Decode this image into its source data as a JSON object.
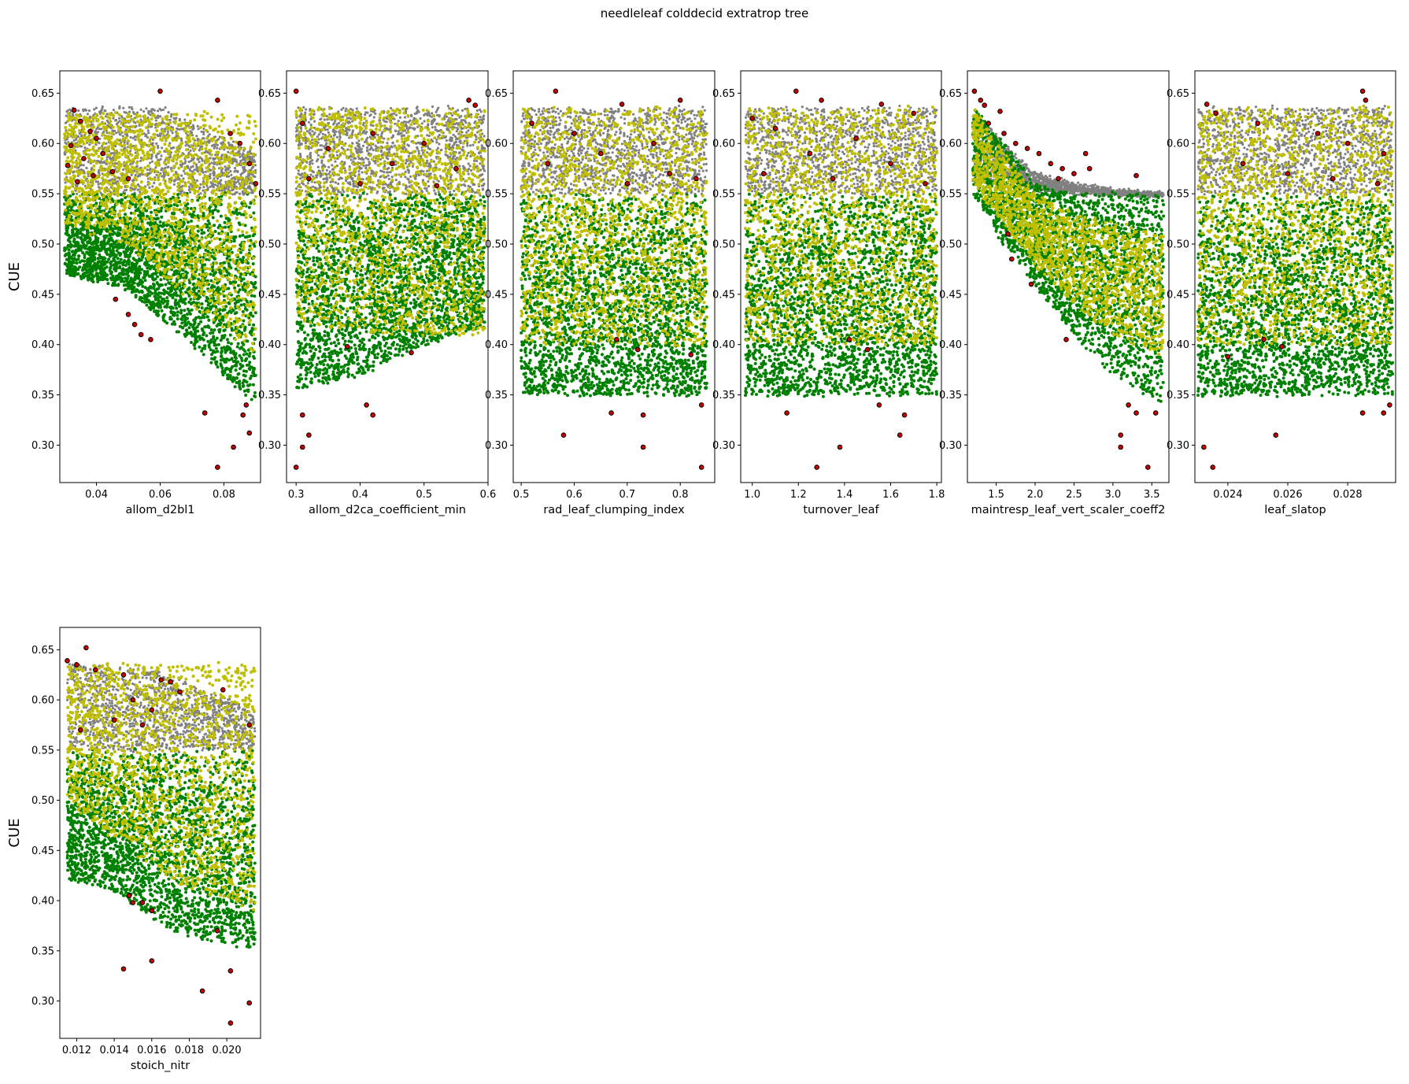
{
  "figure": {
    "title": "needleleaf colddecid extratrop tree",
    "colors": {
      "gray": "#808080",
      "green": "#008000",
      "yellow": "#bfbf00",
      "red": "#cc0000",
      "edge": "#000000"
    }
  },
  "chart_data": [
    {
      "type": "scatter",
      "xlabel": "allom_d2bl1",
      "ylabel": "CUE",
      "xlim": [
        0.0285,
        0.0915
      ],
      "ylim": [
        0.2628,
        0.6722
      ],
      "xticks": [
        "0.04",
        "0.06",
        "0.08"
      ],
      "yticks": [
        "0.30",
        "0.35",
        "0.40",
        "0.45",
        "0.50",
        "0.55",
        "0.60",
        "0.65"
      ],
      "x_domain": [
        0.03,
        0.09
      ],
      "series": [
        {
          "color": "gray",
          "y_range": [
            0.55,
            0.635
          ],
          "upper_edge": [
            [
              0.03,
              0.635
            ],
            [
              0.06,
              0.636
            ],
            [
              0.09,
              0.59
            ]
          ]
        },
        {
          "color": "green",
          "y_range": [
            0.35,
            0.55
          ],
          "lower_edge": [
            [
              0.03,
              0.47
            ],
            [
              0.05,
              0.455
            ],
            [
              0.07,
              0.4
            ],
            [
              0.09,
              0.34
            ]
          ]
        },
        {
          "color": "yellow",
          "y_range": [
            0.38,
            0.63
          ],
          "lower_edge": [
            [
              0.03,
              0.52
            ],
            [
              0.05,
              0.5
            ],
            [
              0.07,
              0.44
            ],
            [
              0.09,
              0.39
            ]
          ]
        }
      ],
      "outliers": [
        [
          0.06,
          0.652
        ],
        [
          0.078,
          0.643
        ],
        [
          0.033,
          0.633
        ],
        [
          0.035,
          0.622
        ],
        [
          0.038,
          0.612
        ],
        [
          0.04,
          0.605
        ],
        [
          0.032,
          0.598
        ],
        [
          0.042,
          0.59
        ],
        [
          0.036,
          0.585
        ],
        [
          0.031,
          0.578
        ],
        [
          0.045,
          0.572
        ],
        [
          0.039,
          0.568
        ],
        [
          0.05,
          0.565
        ],
        [
          0.034,
          0.562
        ],
        [
          0.082,
          0.61
        ],
        [
          0.085,
          0.6
        ],
        [
          0.088,
          0.58
        ],
        [
          0.09,
          0.56
        ],
        [
          0.046,
          0.445
        ],
        [
          0.05,
          0.43
        ],
        [
          0.052,
          0.42
        ],
        [
          0.054,
          0.41
        ],
        [
          0.057,
          0.405
        ],
        [
          0.074,
          0.332
        ],
        [
          0.078,
          0.278
        ],
        [
          0.083,
          0.298
        ],
        [
          0.086,
          0.33
        ],
        [
          0.087,
          0.34
        ],
        [
          0.088,
          0.312
        ]
      ]
    },
    {
      "type": "scatter",
      "xlabel": "allom_d2ca_coefficient_min",
      "ylabel": "",
      "xlim": [
        0.285,
        0.6
      ],
      "ylim": [
        0.2628,
        0.6722
      ],
      "xticks": [
        "0.3",
        "0.4",
        "0.5",
        "0.6"
      ],
      "yticks": [
        "0.30",
        "0.35",
        "0.40",
        "0.45",
        "0.50",
        "0.55",
        "0.60",
        "0.65"
      ],
      "x_domain": [
        0.3,
        0.595
      ],
      "series": [
        {
          "color": "gray",
          "y_range": [
            0.55,
            0.635
          ]
        },
        {
          "color": "green",
          "y_range": [
            0.36,
            0.55
          ],
          "lower_edge": [
            [
              0.3,
              0.355
            ],
            [
              0.4,
              0.37
            ],
            [
              0.5,
              0.4
            ],
            [
              0.6,
              0.42
            ]
          ]
        },
        {
          "color": "yellow",
          "y_range": [
            0.39,
            0.635
          ],
          "lower_edge": [
            [
              0.3,
              0.42
            ],
            [
              0.45,
              0.41
            ],
            [
              0.6,
              0.41
            ]
          ]
        }
      ],
      "outliers": [
        [
          0.3,
          0.652
        ],
        [
          0.57,
          0.643
        ],
        [
          0.58,
          0.638
        ],
        [
          0.31,
          0.62
        ],
        [
          0.42,
          0.61
        ],
        [
          0.5,
          0.6
        ],
        [
          0.35,
          0.595
        ],
        [
          0.45,
          0.58
        ],
        [
          0.55,
          0.575
        ],
        [
          0.32,
          0.565
        ],
        [
          0.4,
          0.56
        ],
        [
          0.52,
          0.558
        ],
        [
          0.38,
          0.398
        ],
        [
          0.48,
          0.392
        ],
        [
          0.41,
          0.34
        ],
        [
          0.42,
          0.33
        ],
        [
          0.31,
          0.33
        ],
        [
          0.32,
          0.31
        ],
        [
          0.3,
          0.278
        ],
        [
          0.31,
          0.298
        ]
      ]
    },
    {
      "type": "scatter",
      "xlabel": "rad_leaf_clumping_index",
      "ylabel": "",
      "xlim": [
        0.485,
        0.865
      ],
      "ylim": [
        0.2628,
        0.6722
      ],
      "xticks": [
        "0.5",
        "0.6",
        "0.7",
        "0.8"
      ],
      "yticks": [
        "0.30",
        "0.35",
        "0.40",
        "0.45",
        "0.50",
        "0.55",
        "0.60",
        "0.65"
      ],
      "x_domain": [
        0.5,
        0.85
      ],
      "series": [
        {
          "color": "gray",
          "y_range": [
            0.55,
            0.635
          ]
        },
        {
          "color": "green",
          "y_range": [
            0.35,
            0.55
          ]
        },
        {
          "color": "yellow",
          "y_range": [
            0.4,
            0.635
          ]
        }
      ],
      "outliers": [
        [
          0.565,
          0.652
        ],
        [
          0.8,
          0.643
        ],
        [
          0.69,
          0.639
        ],
        [
          0.52,
          0.62
        ],
        [
          0.6,
          0.61
        ],
        [
          0.75,
          0.6
        ],
        [
          0.65,
          0.59
        ],
        [
          0.55,
          0.58
        ],
        [
          0.78,
          0.57
        ],
        [
          0.7,
          0.56
        ],
        [
          0.83,
          0.565
        ],
        [
          0.68,
          0.405
        ],
        [
          0.72,
          0.395
        ],
        [
          0.82,
          0.39
        ],
        [
          0.67,
          0.332
        ],
        [
          0.73,
          0.33
        ],
        [
          0.84,
          0.34
        ],
        [
          0.58,
          0.31
        ],
        [
          0.73,
          0.298
        ],
        [
          0.84,
          0.278
        ]
      ]
    },
    {
      "type": "scatter",
      "xlabel": "turnover_leaf",
      "ylabel": "",
      "xlim": [
        0.95,
        1.82
      ],
      "ylim": [
        0.2628,
        0.6722
      ],
      "xticks": [
        "1.0",
        "1.2",
        "1.4",
        "1.6",
        "1.8"
      ],
      "yticks": [
        "0.30",
        "0.35",
        "0.40",
        "0.45",
        "0.50",
        "0.55",
        "0.60",
        "0.65"
      ],
      "x_domain": [
        0.97,
        1.8
      ],
      "series": [
        {
          "color": "gray",
          "y_range": [
            0.55,
            0.635
          ]
        },
        {
          "color": "green",
          "y_range": [
            0.35,
            0.55
          ]
        },
        {
          "color": "yellow",
          "y_range": [
            0.4,
            0.635
          ]
        }
      ],
      "outliers": [
        [
          1.19,
          0.652
        ],
        [
          1.3,
          0.643
        ],
        [
          1.56,
          0.639
        ],
        [
          1.0,
          0.625
        ],
        [
          1.1,
          0.615
        ],
        [
          1.45,
          0.605
        ],
        [
          1.7,
          0.63
        ],
        [
          1.25,
          0.59
        ],
        [
          1.6,
          0.58
        ],
        [
          1.05,
          0.57
        ],
        [
          1.35,
          0.565
        ],
        [
          1.75,
          0.56
        ],
        [
          1.42,
          0.405
        ],
        [
          1.5,
          0.395
        ],
        [
          1.15,
          0.332
        ],
        [
          1.55,
          0.34
        ],
        [
          1.66,
          0.33
        ],
        [
          1.64,
          0.31
        ],
        [
          1.38,
          0.298
        ],
        [
          1.28,
          0.278
        ]
      ]
    },
    {
      "type": "scatter",
      "xlabel": "maintresp_leaf_vert_scaler_coeff2",
      "ylabel": "",
      "xlim": [
        1.13,
        3.72
      ],
      "ylim": [
        0.2628,
        0.6722
      ],
      "xticks": [
        "1.5",
        "2.0",
        "2.5",
        "3.0",
        "3.5"
      ],
      "yticks": [
        "0.30",
        "0.35",
        "0.40",
        "0.45",
        "0.50",
        "0.55",
        "0.60",
        "0.65"
      ],
      "x_domain": [
        1.2,
        3.65
      ],
      "series": [
        {
          "color": "gray",
          "band": [
            [
              1.2,
              0.56,
              0.636
            ],
            [
              1.6,
              0.565,
              0.6
            ],
            [
              2.0,
              0.555,
              0.57
            ],
            [
              2.5,
              0.55,
              0.56
            ],
            [
              3.0,
              0.55,
              0.553
            ],
            [
              3.65,
              0.548,
              0.55
            ]
          ]
        },
        {
          "color": "green",
          "band": [
            [
              1.2,
              0.55,
              0.636
            ],
            [
              1.6,
              0.5,
              0.6
            ],
            [
              2.0,
              0.46,
              0.56
            ],
            [
              2.5,
              0.41,
              0.55
            ],
            [
              3.0,
              0.37,
              0.55
            ],
            [
              3.65,
              0.34,
              0.55
            ]
          ]
        },
        {
          "color": "yellow",
          "band": [
            [
              1.2,
              0.56,
              0.636
            ],
            [
              1.6,
              0.52,
              0.59
            ],
            [
              2.0,
              0.48,
              0.55
            ],
            [
              2.5,
              0.44,
              0.53
            ],
            [
              3.0,
              0.41,
              0.52
            ],
            [
              3.65,
              0.39,
              0.51
            ]
          ]
        }
      ],
      "outliers": [
        [
          1.22,
          0.652
        ],
        [
          1.3,
          0.643
        ],
        [
          1.35,
          0.638
        ],
        [
          1.55,
          0.632
        ],
        [
          1.4,
          0.62
        ],
        [
          1.6,
          0.61
        ],
        [
          1.75,
          0.6
        ],
        [
          1.9,
          0.595
        ],
        [
          2.05,
          0.59
        ],
        [
          2.2,
          0.58
        ],
        [
          2.35,
          0.575
        ],
        [
          2.5,
          0.57
        ],
        [
          2.65,
          0.59
        ],
        [
          2.7,
          0.575
        ],
        [
          3.3,
          0.568
        ],
        [
          2.3,
          0.565
        ],
        [
          1.7,
          0.485
        ],
        [
          1.65,
          0.51
        ],
        [
          1.95,
          0.46
        ],
        [
          2.4,
          0.405
        ],
        [
          3.2,
          0.34
        ],
        [
          3.3,
          0.332
        ],
        [
          3.55,
          0.332
        ],
        [
          3.1,
          0.31
        ],
        [
          3.1,
          0.298
        ],
        [
          3.45,
          0.278
        ]
      ]
    },
    {
      "type": "scatter",
      "xlabel": "leaf_slatop",
      "ylabel": "",
      "xlim": [
        0.0229,
        0.0296
      ],
      "ylim": [
        0.2628,
        0.6722
      ],
      "xticks": [
        "0.024",
        "0.026",
        "0.028"
      ],
      "yticks": [
        "0.30",
        "0.35",
        "0.40",
        "0.45",
        "0.50",
        "0.55",
        "0.60",
        "0.65"
      ],
      "x_domain": [
        0.023,
        0.0295
      ],
      "series": [
        {
          "color": "gray",
          "y_range": [
            0.55,
            0.635
          ]
        },
        {
          "color": "green",
          "y_range": [
            0.35,
            0.55
          ]
        },
        {
          "color": "yellow",
          "y_range": [
            0.4,
            0.635
          ]
        }
      ],
      "outliers": [
        [
          0.0285,
          0.652
        ],
        [
          0.0286,
          0.643
        ],
        [
          0.0233,
          0.639
        ],
        [
          0.0236,
          0.63
        ],
        [
          0.025,
          0.62
        ],
        [
          0.027,
          0.61
        ],
        [
          0.028,
          0.6
        ],
        [
          0.0292,
          0.59
        ],
        [
          0.0245,
          0.58
        ],
        [
          0.026,
          0.57
        ],
        [
          0.0275,
          0.565
        ],
        [
          0.029,
          0.56
        ],
        [
          0.0252,
          0.405
        ],
        [
          0.0258,
          0.398
        ],
        [
          0.024,
          0.388
        ],
        [
          0.0285,
          0.332
        ],
        [
          0.0292,
          0.332
        ],
        [
          0.0294,
          0.34
        ],
        [
          0.0256,
          0.31
        ],
        [
          0.0232,
          0.298
        ],
        [
          0.0235,
          0.278
        ]
      ]
    },
    {
      "type": "scatter",
      "xlabel": "stoich_nitr",
      "ylabel": "CUE",
      "xlim": [
        0.0111,
        0.0218
      ],
      "ylim": [
        0.2628,
        0.6722
      ],
      "xticks": [
        "0.012",
        "0.014",
        "0.016",
        "0.018",
        "0.020"
      ],
      "yticks": [
        "0.30",
        "0.35",
        "0.40",
        "0.45",
        "0.50",
        "0.55",
        "0.60",
        "0.65"
      ],
      "x_domain": [
        0.0115,
        0.0215
      ],
      "series": [
        {
          "color": "gray",
          "y_range": [
            0.55,
            0.635
          ],
          "upper_edge": [
            [
              0.0115,
              0.636
            ],
            [
              0.016,
              0.63
            ],
            [
              0.0215,
              0.59
            ]
          ]
        },
        {
          "color": "green",
          "y_range": [
            0.35,
            0.55
          ],
          "lower_edge": [
            [
              0.0115,
              0.42
            ],
            [
              0.014,
              0.41
            ],
            [
              0.017,
              0.37
            ],
            [
              0.0215,
              0.35
            ]
          ]
        },
        {
          "color": "yellow",
          "y_range": [
            0.38,
            0.635
          ],
          "lower_edge": [
            [
              0.0115,
              0.5
            ],
            [
              0.014,
              0.46
            ],
            [
              0.017,
              0.42
            ],
            [
              0.0215,
              0.39
            ]
          ]
        }
      ],
      "outliers": [
        [
          0.0125,
          0.652
        ],
        [
          0.0115,
          0.639
        ],
        [
          0.012,
          0.635
        ],
        [
          0.013,
          0.63
        ],
        [
          0.0145,
          0.625
        ],
        [
          0.0165,
          0.62
        ],
        [
          0.017,
          0.618
        ],
        [
          0.0175,
          0.608
        ],
        [
          0.0198,
          0.61
        ],
        [
          0.015,
          0.6
        ],
        [
          0.016,
          0.59
        ],
        [
          0.014,
          0.58
        ],
        [
          0.0155,
          0.575
        ],
        [
          0.0122,
          0.57
        ],
        [
          0.0212,
          0.575
        ],
        [
          0.0148,
          0.405
        ],
        [
          0.015,
          0.398
        ],
        [
          0.0155,
          0.398
        ],
        [
          0.016,
          0.39
        ],
        [
          0.0195,
          0.37
        ],
        [
          0.0145,
          0.332
        ],
        [
          0.016,
          0.34
        ],
        [
          0.0202,
          0.33
        ],
        [
          0.0187,
          0.31
        ],
        [
          0.0212,
          0.298
        ],
        [
          0.0202,
          0.278
        ]
      ]
    }
  ]
}
